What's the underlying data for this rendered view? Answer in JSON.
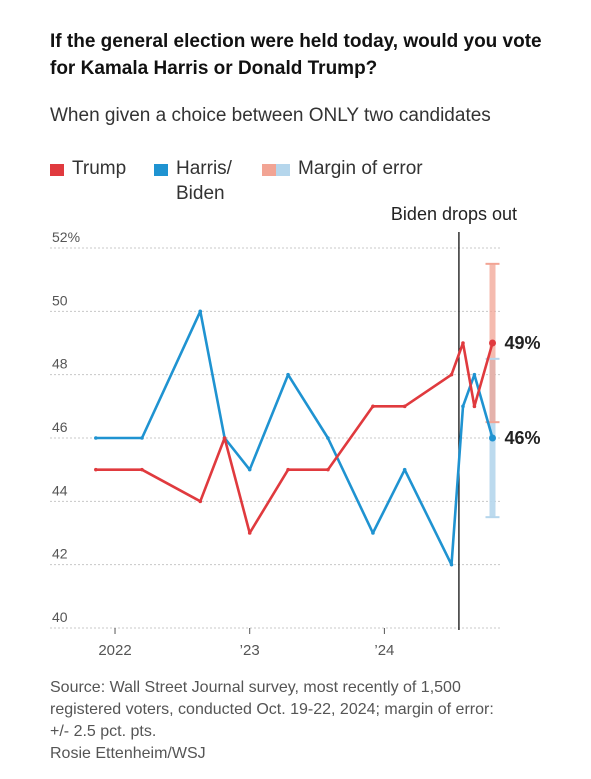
{
  "title": "If the general election were held today, would you vote for Kamala Harris or Donald Trump?",
  "subtitle": "When given a choice between ONLY two candidates",
  "legend": {
    "trump": "Trump",
    "harris_line1": "Harris/",
    "harris_line2": "Biden",
    "moe": "Margin of error"
  },
  "colors": {
    "trump": "#e03a3e",
    "harris": "#1f93d1",
    "trump_moe": "#f2a494",
    "harris_moe": "#b5d6ec",
    "grid": "#c8c8c8",
    "axis_text": "#555555"
  },
  "annotation": "Biden drops out",
  "source": {
    "line1": "Source: Wall Street Journal survey, most recently of 1,500",
    "line2": "registered voters, conducted Oct. 19-22, 2024; margin of error:",
    "line3": "+/- 2.5 pct. pts.",
    "line4": "Rosie Ettenheim/WSJ"
  },
  "chart_data": {
    "type": "line",
    "title": "If the general election were held today, would you vote for Kamala Harris or Donald Trump?",
    "subtitle": "When given a choice between ONLY two candidates",
    "ylim": [
      40,
      52
    ],
    "yticks": [
      40,
      42,
      44,
      46,
      48,
      50,
      52
    ],
    "ytick_labels": [
      "40",
      "42",
      "44",
      "46",
      "48",
      "50",
      "52%"
    ],
    "xlim": [
      "2021-09-01",
      "2024-12-01"
    ],
    "xticks": [
      "2022-01-01",
      "2023-01-01",
      "2024-01-01"
    ],
    "xtick_labels": [
      "2022",
      "’23",
      "’24"
    ],
    "grid": true,
    "legend_position": "top-left",
    "series": [
      {
        "name": "Trump",
        "x": [
          "2021-11-10",
          "2022-03-15",
          "2022-08-20",
          "2022-10-25",
          "2023-01-01",
          "2023-04-15",
          "2023-08-01",
          "2023-12-01",
          "2024-02-25",
          "2024-07-01",
          "2024-08-01",
          "2024-09-01",
          "2024-10-20"
        ],
        "values": [
          45,
          45,
          44,
          46,
          43,
          45,
          45,
          47,
          47,
          48,
          49,
          47,
          49
        ]
      },
      {
        "name": "Harris/Biden",
        "x": [
          "2021-11-10",
          "2022-03-15",
          "2022-08-20",
          "2022-10-25",
          "2023-01-01",
          "2023-04-15",
          "2023-08-01",
          "2023-12-01",
          "2024-02-25",
          "2024-07-01",
          "2024-08-01",
          "2024-09-01",
          "2024-10-20"
        ],
        "values": [
          46,
          46,
          50,
          46,
          45,
          48,
          46,
          43,
          45,
          42,
          47,
          48,
          46
        ]
      }
    ],
    "final_labels": {
      "trump": "49%",
      "harris": "46%"
    },
    "margin_of_error": 2.5,
    "annotations": [
      {
        "x": "2024-07-21",
        "text": "Biden drops out"
      }
    ]
  }
}
